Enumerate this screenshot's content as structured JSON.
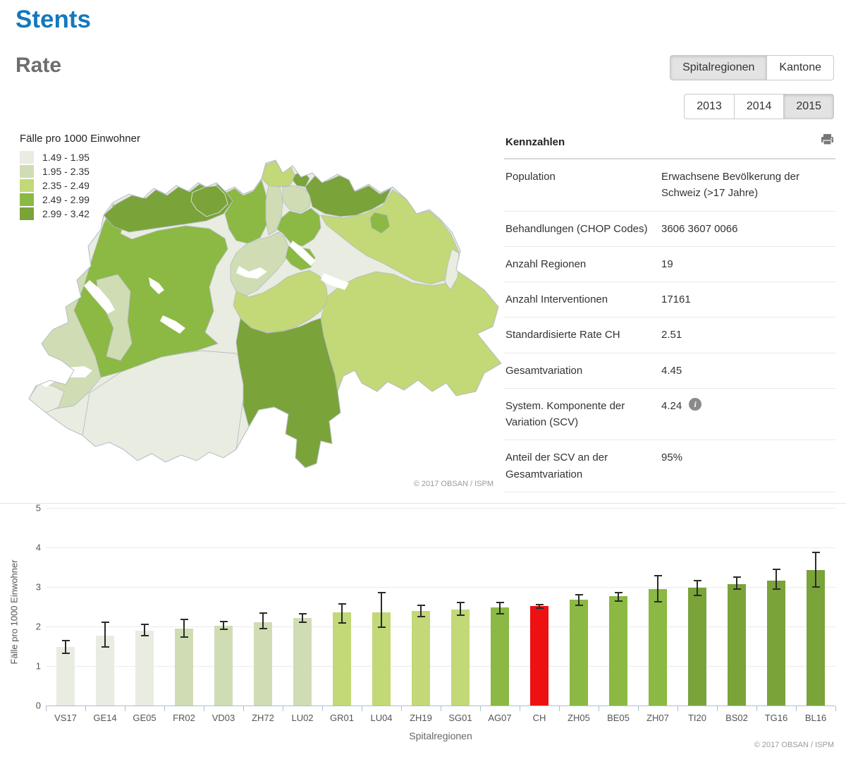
{
  "page": {
    "title": "Stents",
    "subtitle": "Rate"
  },
  "toggles": {
    "region_mode": [
      {
        "label": "Spitalregionen",
        "selected": true
      },
      {
        "label": "Kantone",
        "selected": false
      }
    ],
    "years": [
      {
        "label": "2013",
        "selected": false
      },
      {
        "label": "2014",
        "selected": false
      },
      {
        "label": "2015",
        "selected": true
      }
    ]
  },
  "map": {
    "legend_title": "Fälle pro 1000 Einwohner",
    "classes": [
      {
        "range": "1.49 - 1.95",
        "color": "#e9ece0"
      },
      {
        "range": "1.95 - 2.35",
        "color": "#d0ddb4"
      },
      {
        "range": "2.35 - 2.49",
        "color": "#c3d877"
      },
      {
        "range": "2.49 - 2.99",
        "color": "#8bb943"
      },
      {
        "range": "2.99 - 3.42",
        "color": "#7aa33a"
      }
    ],
    "copyright": "© 2017 OBSAN / ISPM"
  },
  "kennzahlen": {
    "title": "Kennzahlen",
    "rows": [
      {
        "label": "Population",
        "value": "Erwachsene Bevölkerung der Schweiz (>17 Jahre)",
        "info": false
      },
      {
        "label": "Behandlungen (CHOP Codes)",
        "value": "3606 3607 0066",
        "info": false
      },
      {
        "label": "Anzahl Regionen",
        "value": "19",
        "info": false
      },
      {
        "label": "Anzahl Interventionen",
        "value": "17161",
        "info": false
      },
      {
        "label": "Standardisierte Rate CH",
        "value": "2.51",
        "info": false
      },
      {
        "label": "Gesamtvariation",
        "value": "4.45",
        "info": false
      },
      {
        "label": "System. Komponente der Variation (SCV)",
        "value": "4.24",
        "info": true
      },
      {
        "label": "Anteil der SCV an der Gesamtvariation",
        "value": "95%",
        "info": false
      }
    ]
  },
  "chart_data": {
    "type": "bar",
    "title": "",
    "xlabel": "Spitalregionen",
    "ylabel": "Fälle pro 1000 Einwohner",
    "ylim": [
      0,
      5
    ],
    "yticks": [
      0,
      1,
      2,
      3,
      4,
      5
    ],
    "grid": true,
    "ch_color": "#ee1111",
    "categories": [
      "VS17",
      "GE14",
      "GE05",
      "FR02",
      "VD03",
      "ZH72",
      "LU02",
      "GR01",
      "LU04",
      "ZH19",
      "SG01",
      "AG07",
      "CH",
      "ZH05",
      "BE05",
      "ZH07",
      "TI20",
      "BS02",
      "TG16",
      "BL16"
    ],
    "values": [
      1.49,
      1.77,
      1.89,
      1.95,
      2.01,
      2.1,
      2.21,
      2.35,
      2.36,
      2.39,
      2.43,
      2.49,
      2.51,
      2.68,
      2.76,
      2.95,
      2.99,
      3.07,
      3.16,
      3.42
    ],
    "ci_low": [
      1.33,
      1.48,
      1.76,
      1.74,
      1.93,
      1.94,
      2.1,
      2.09,
      1.98,
      2.25,
      2.29,
      2.32,
      2.46,
      2.53,
      2.65,
      2.63,
      2.78,
      2.94,
      2.95,
      3.0
    ],
    "ci_high": [
      1.64,
      2.11,
      2.06,
      2.18,
      2.13,
      2.34,
      2.33,
      2.58,
      2.85,
      2.53,
      2.61,
      2.61,
      2.56,
      2.8,
      2.85,
      3.28,
      3.16,
      3.25,
      3.44,
      3.87
    ],
    "bar_class": [
      1,
      1,
      1,
      2,
      2,
      2,
      2,
      3,
      3,
      3,
      3,
      4,
      0,
      4,
      4,
      4,
      5,
      5,
      5,
      5
    ],
    "copyright": "© 2017 OBSAN / ISPM"
  }
}
